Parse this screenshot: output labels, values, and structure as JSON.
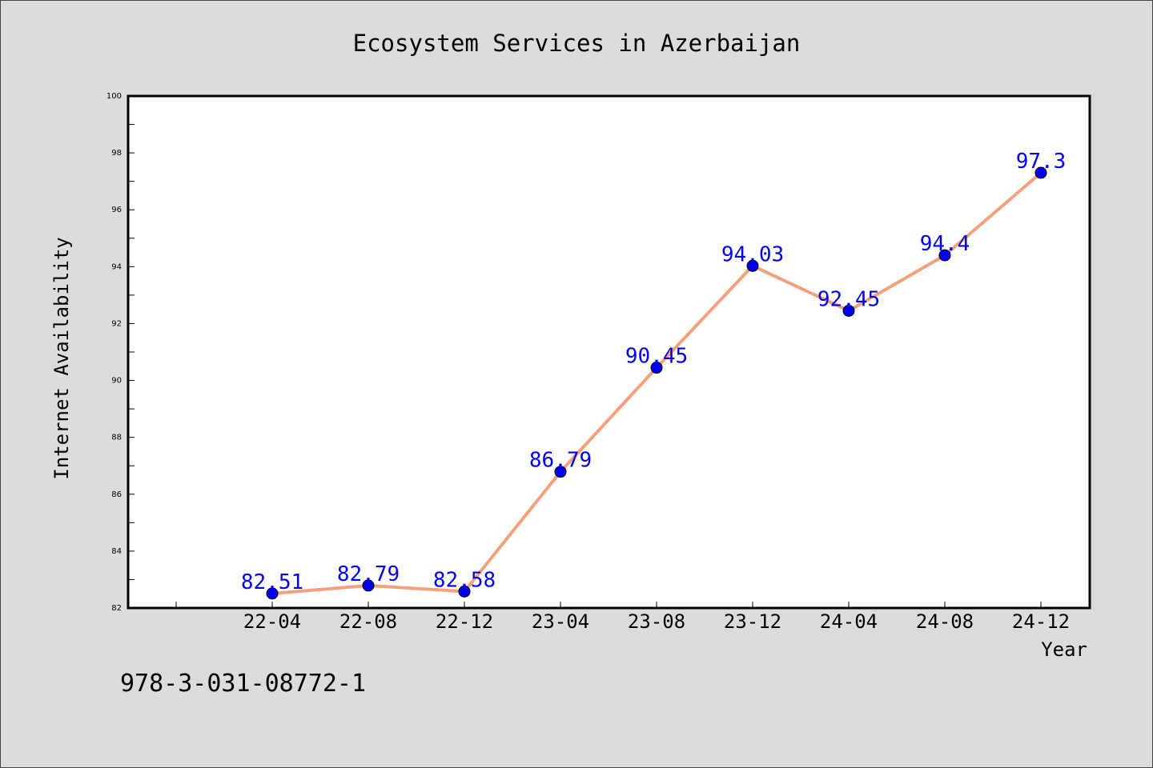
{
  "chart_data": {
    "type": "line",
    "title": "Ecosystem Services in Azerbaijan",
    "xlabel": "Year",
    "ylabel": "Internet Availability",
    "categories": [
      "22-04",
      "22-08",
      "22-12",
      "23-04",
      "23-08",
      "23-12",
      "24-04",
      "24-08",
      "24-12"
    ],
    "series": [
      {
        "values": [
          82.51,
          82.79,
          82.58,
          86.79,
          90.45,
          94.03,
          92.45,
          94.4,
          97.3
        ],
        "labels": [
          "82.51",
          "82.79",
          "82.58",
          "86.79",
          "90.45",
          "94.03",
          "92.45",
          "94.4",
          "97.3"
        ],
        "line_color": "#f4a07c",
        "marker_color": "#0000ee"
      }
    ],
    "yticks": [
      "82",
      "84",
      "86",
      "88",
      "90",
      "92",
      "94",
      "96",
      "98",
      "100"
    ],
    "ylim": [
      82,
      100
    ],
    "grid": false,
    "legend": "none"
  },
  "footer": {
    "isbn": "978-3-031-08772-1"
  }
}
